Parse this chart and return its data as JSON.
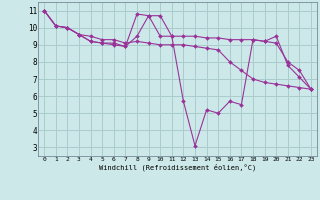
{
  "background_color": "#cce8e8",
  "grid_color": "#aacccc",
  "line_color": "#993399",
  "marker_color": "#993399",
  "xlabel": "Windchill (Refroidissement éolien,°C)",
  "ylabel_ticks": [
    3,
    4,
    5,
    6,
    7,
    8,
    9,
    10,
    11
  ],
  "xtick_labels": [
    "0",
    "1",
    "2",
    "3",
    "4",
    "5",
    "6",
    "7",
    "8",
    "9",
    "10",
    "11",
    "12",
    "13",
    "14",
    "15",
    "16",
    "17",
    "18",
    "19",
    "20",
    "21",
    "22",
    "23"
  ],
  "xlim": [
    -0.5,
    23.5
  ],
  "ylim": [
    2.5,
    11.5
  ],
  "series": [
    {
      "x": [
        0,
        1,
        2,
        3,
        4,
        5,
        6,
        7,
        8,
        9,
        10,
        11,
        12,
        13,
        14,
        15,
        16,
        17,
        18,
        19,
        20,
        21,
        22,
        23
      ],
      "y": [
        11.0,
        10.1,
        10.0,
        9.6,
        9.2,
        9.1,
        9.0,
        8.9,
        10.8,
        10.7,
        9.5,
        9.5,
        5.7,
        3.1,
        5.2,
        5.0,
        5.7,
        5.5,
        9.3,
        9.2,
        9.5,
        7.8,
        7.1,
        6.4
      ]
    },
    {
      "x": [
        0,
        1,
        2,
        3,
        4,
        5,
        6,
        7,
        8,
        9,
        10,
        11,
        12,
        13,
        14,
        15,
        16,
        17,
        18,
        19,
        20,
        21,
        22,
        23
      ],
      "y": [
        11.0,
        10.1,
        10.0,
        9.6,
        9.5,
        9.3,
        9.3,
        9.1,
        9.2,
        9.1,
        9.0,
        9.0,
        9.0,
        8.9,
        8.8,
        8.7,
        8.0,
        7.5,
        7.0,
        6.8,
        6.7,
        6.6,
        6.5,
        6.4
      ]
    },
    {
      "x": [
        0,
        1,
        2,
        3,
        4,
        5,
        6,
        7,
        8,
        9,
        10,
        11,
        12,
        13,
        14,
        15,
        16,
        17,
        18,
        19,
        20,
        21,
        22,
        23
      ],
      "y": [
        11.0,
        10.1,
        10.0,
        9.6,
        9.2,
        9.1,
        9.1,
        8.9,
        9.5,
        10.7,
        10.7,
        9.5,
        9.5,
        9.5,
        9.4,
        9.4,
        9.3,
        9.3,
        9.3,
        9.2,
        9.1,
        8.0,
        7.5,
        6.4
      ]
    }
  ]
}
